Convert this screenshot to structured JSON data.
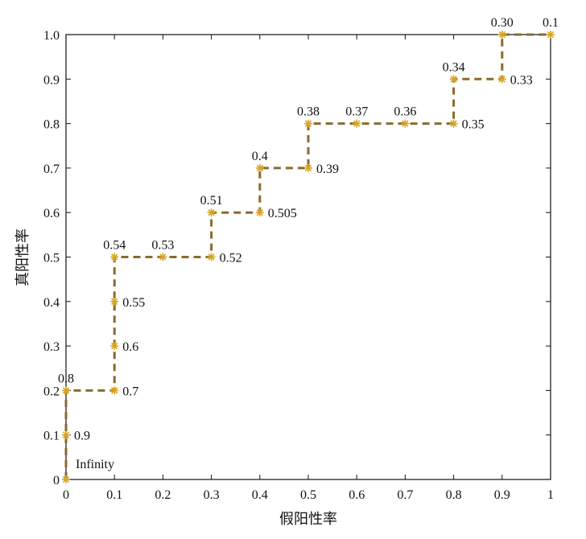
{
  "chart_data": {
    "type": "line",
    "title": "",
    "xlabel": "假阳性率",
    "ylabel": "真阳性率",
    "xlim": [
      0,
      1
    ],
    "ylim": [
      0,
      1
    ],
    "xticks": [
      "0",
      "0.1",
      "0.2",
      "0.3",
      "0.4",
      "0.5",
      "0.6",
      "0.7",
      "0.8",
      "0.9",
      "1"
    ],
    "yticks": [
      "0",
      "0.1",
      "0.2",
      "0.3",
      "0.4",
      "0.5",
      "0.6",
      "0.7",
      "0.8",
      "0.9",
      "1.0"
    ],
    "grid": false,
    "legend": "none",
    "line_color": "#8B6A2E",
    "marker_color": "#D9A520",
    "points": [
      {
        "x": 0.0,
        "y": 0.0,
        "label": "Infinity"
      },
      {
        "x": 0.0,
        "y": 0.1,
        "label": "0.9"
      },
      {
        "x": 0.0,
        "y": 0.2,
        "label": "0.8"
      },
      {
        "x": 0.1,
        "y": 0.2,
        "label": "0.7"
      },
      {
        "x": 0.1,
        "y": 0.3,
        "label": "0.6"
      },
      {
        "x": 0.1,
        "y": 0.4,
        "label": "0.55"
      },
      {
        "x": 0.1,
        "y": 0.5,
        "label": "0.54"
      },
      {
        "x": 0.2,
        "y": 0.5,
        "label": "0.53"
      },
      {
        "x": 0.3,
        "y": 0.5,
        "label": "0.52"
      },
      {
        "x": 0.3,
        "y": 0.6,
        "label": "0.51"
      },
      {
        "x": 0.4,
        "y": 0.6,
        "label": "0.505"
      },
      {
        "x": 0.4,
        "y": 0.7,
        "label": "0.4"
      },
      {
        "x": 0.5,
        "y": 0.7,
        "label": "0.39"
      },
      {
        "x": 0.5,
        "y": 0.8,
        "label": "0.38"
      },
      {
        "x": 0.6,
        "y": 0.8,
        "label": "0.37"
      },
      {
        "x": 0.7,
        "y": 0.8,
        "label": "0.36"
      },
      {
        "x": 0.8,
        "y": 0.8,
        "label": "0.35"
      },
      {
        "x": 0.8,
        "y": 0.9,
        "label": "0.34"
      },
      {
        "x": 0.9,
        "y": 0.9,
        "label": "0.33"
      },
      {
        "x": 0.9,
        "y": 1.0,
        "label": "0.30"
      },
      {
        "x": 1.0,
        "y": 1.0,
        "label": "0.1"
      }
    ]
  }
}
